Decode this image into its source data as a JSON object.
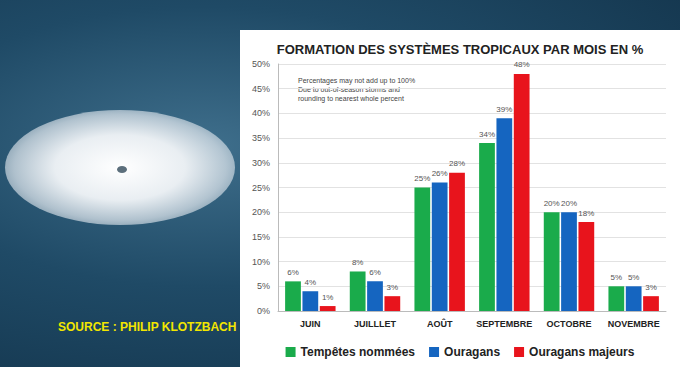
{
  "source": "SOURCE : PHILIP KLOTZBACH",
  "chart_data": {
    "type": "bar",
    "title": "FORMATION DES SYSTÈMES TROPICAUX PAR MOIS EN %",
    "note": "Percentages may not add up to 100%\nDue to out-of-season storms and\nrounding to nearest whole percent",
    "categories": [
      "JUIN",
      "JUILLLET",
      "AOÛT",
      "SEPTEMBRE",
      "OCTOBRE",
      "NOVEMBRE"
    ],
    "series": [
      {
        "name": "Tempêtes nommées",
        "color": "#1aab4b",
        "values": [
          6,
          8,
          25,
          34,
          20,
          5
        ],
        "value_labels": [
          "6%",
          "8%",
          "25%",
          "34%",
          "20%",
          "5%"
        ]
      },
      {
        "name": "Ouragans",
        "color": "#1565c0",
        "values": [
          4,
          6,
          26,
          39,
          20,
          5
        ],
        "value_labels": [
          "4%",
          "6%",
          "26%",
          "39%",
          "20%",
          "5%"
        ]
      },
      {
        "name": "Ouragans majeurs",
        "color": "#e8141c",
        "values": [
          1,
          3,
          28,
          48,
          18,
          3
        ],
        "value_labels": [
          "1%",
          "3%",
          "28%",
          "48%",
          "18%",
          "3%"
        ]
      }
    ],
    "ylim": [
      0,
      50
    ],
    "yticks": [
      {
        "value": 0,
        "label": "0%"
      },
      {
        "value": 5,
        "label": "5%"
      },
      {
        "value": 10,
        "label": "10%"
      },
      {
        "value": 15,
        "label": "15%"
      },
      {
        "value": 20,
        "label": "20%"
      },
      {
        "value": 25,
        "label": "25%"
      },
      {
        "value": 30,
        "label": "30%"
      },
      {
        "value": 35,
        "label": "35%"
      },
      {
        "value": 40,
        "label": "40%"
      },
      {
        "value": 45,
        "label": "45%"
      },
      {
        "value": 50,
        "label": "50%"
      }
    ],
    "grid": true,
    "data_labels": true,
    "legend": "bottom"
  }
}
